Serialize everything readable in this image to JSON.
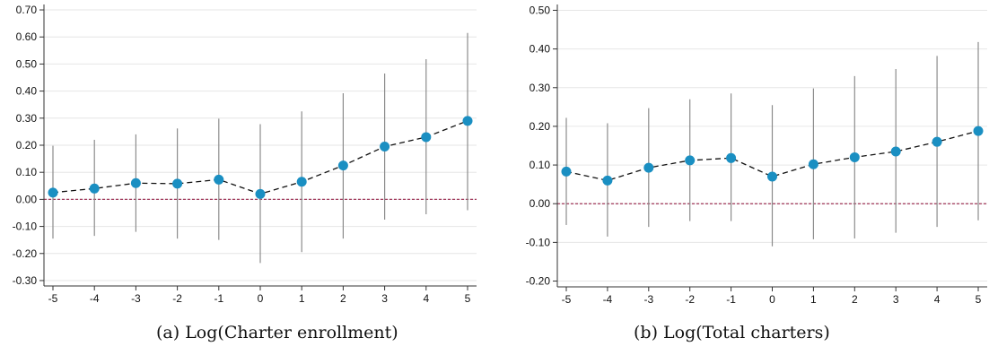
{
  "captions": [
    "(a) Log(Charter enrollment)",
    "(b) Log(Total charters)"
  ],
  "colors": {
    "point": "#1a8fc2",
    "ci": "#8c8c8c",
    "line": "#111111",
    "zero_line": "#a0375a",
    "grid": "#e6e6e6",
    "axis": "#333333"
  },
  "chart_data": [
    {
      "type": "scatter",
      "title": "",
      "xlabel": "",
      "ylabel": "",
      "x": [
        -5,
        -4,
        -3,
        -2,
        -1,
        0,
        1,
        2,
        3,
        4,
        5
      ],
      "xticks": [
        "-5",
        "-4",
        "-3",
        "-2",
        "-1",
        "0",
        "1",
        "2",
        "3",
        "4",
        "5"
      ],
      "ylim": [
        -0.32,
        0.72
      ],
      "yticks": [
        -0.3,
        -0.2,
        -0.1,
        0.0,
        0.1,
        0.2,
        0.3,
        0.4,
        0.5,
        0.6,
        0.7
      ],
      "ytick_labels": [
        "-0.30",
        "-0.20",
        "-0.10",
        "0.00",
        "0.10",
        "0.20",
        "0.30",
        "0.40",
        "0.50",
        "0.60",
        "0.70"
      ],
      "series": [
        {
          "values": [
            0.025,
            0.04,
            0.06,
            0.058,
            0.073,
            0.02,
            0.065,
            0.125,
            0.195,
            0.23,
            0.29
          ],
          "ci_low": [
            -0.145,
            -0.135,
            -0.12,
            -0.145,
            -0.15,
            -0.235,
            -0.195,
            -0.145,
            -0.075,
            -0.055,
            -0.04
          ],
          "ci_high": [
            0.198,
            0.22,
            0.24,
            0.262,
            0.298,
            0.278,
            0.325,
            0.392,
            0.465,
            0.518,
            0.615
          ]
        }
      ],
      "reference_line": 0,
      "grid": true
    },
    {
      "type": "scatter",
      "title": "",
      "xlabel": "",
      "ylabel": "",
      "x": [
        -5,
        -4,
        -3,
        -2,
        -1,
        0,
        1,
        2,
        3,
        4,
        5
      ],
      "xticks": [
        "-5",
        "-4",
        "-3",
        "-2",
        "-1",
        "0",
        "1",
        "2",
        "3",
        "4",
        "5"
      ],
      "ylim": [
        -0.215,
        0.515
      ],
      "yticks": [
        -0.2,
        -0.1,
        0.0,
        0.1,
        0.2,
        0.3,
        0.4,
        0.5
      ],
      "ytick_labels": [
        "-0.20",
        "-0.10",
        "0.00",
        "0.10",
        "0.20",
        "0.30",
        "0.40",
        "0.50"
      ],
      "series": [
        {
          "values": [
            0.083,
            0.06,
            0.093,
            0.112,
            0.118,
            0.07,
            0.102,
            0.12,
            0.135,
            0.16,
            0.188
          ],
          "ci_low": [
            -0.055,
            -0.085,
            -0.06,
            -0.045,
            -0.045,
            -0.11,
            -0.092,
            -0.09,
            -0.075,
            -0.06,
            -0.043
          ],
          "ci_high": [
            0.222,
            0.208,
            0.247,
            0.27,
            0.285,
            0.255,
            0.298,
            0.33,
            0.348,
            0.382,
            0.418
          ]
        }
      ],
      "reference_line": 0,
      "grid": true
    }
  ]
}
